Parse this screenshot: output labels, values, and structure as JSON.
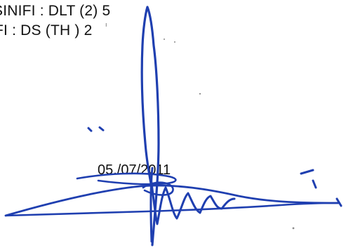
{
  "document": {
    "line1": "SINIFI :  DLT (2) 5",
    "line2": "FI : DS (TH ) 2",
    "date": "05./07/2011"
  },
  "ink_color": "#1f3fb0",
  "signature_icon": "handwritten-signature"
}
